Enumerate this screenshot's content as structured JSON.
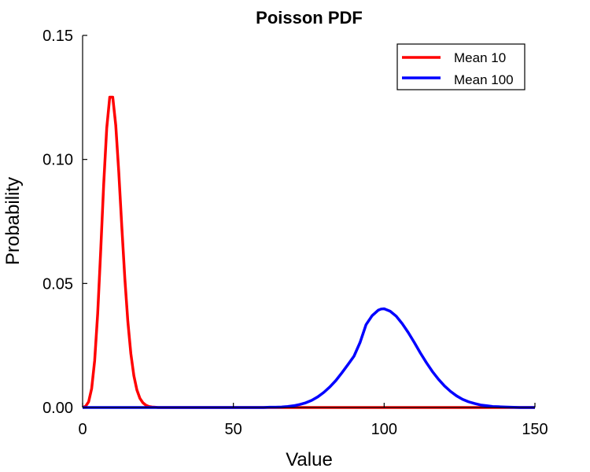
{
  "chart_data": {
    "type": "line",
    "title": "Poisson PDF",
    "xlabel": "Value",
    "ylabel": "Probability",
    "xlim": [
      0,
      150
    ],
    "ylim": [
      0,
      0.15
    ],
    "xticks": [
      0,
      50,
      100,
      150
    ],
    "xtick_labels": [
      "0",
      "50",
      "100",
      "150"
    ],
    "yticks": [
      0,
      0.05,
      0.1,
      0.15
    ],
    "ytick_labels": [
      "0.00",
      "0.05",
      "0.10",
      "0.15"
    ],
    "grid": false,
    "legend_position": "top-right",
    "series": [
      {
        "name": "Mean 10",
        "color": "#ff0000",
        "x": [
          0,
          1,
          2,
          3,
          4,
          5,
          6,
          7,
          8,
          9,
          10,
          11,
          12,
          13,
          14,
          15,
          16,
          17,
          18,
          19,
          20,
          21,
          22,
          23,
          24,
          25,
          26,
          27,
          28,
          29,
          30,
          35,
          40,
          45,
          50,
          60,
          70,
          80,
          90,
          100,
          110,
          120,
          130,
          140,
          150
        ],
        "y": [
          0.0,
          0.0005,
          0.0023,
          0.0076,
          0.0189,
          0.0378,
          0.0631,
          0.0901,
          0.1126,
          0.1251,
          0.1251,
          0.1137,
          0.0948,
          0.0729,
          0.0521,
          0.0347,
          0.0217,
          0.0128,
          0.0071,
          0.0037,
          0.0019,
          0.0009,
          0.0004,
          0.0002,
          0.0001,
          0.0,
          0.0,
          0.0,
          0.0,
          0.0,
          0.0,
          0.0,
          0.0,
          0.0,
          0.0,
          0.0,
          0.0,
          0.0,
          0.0,
          0.0,
          0.0,
          0.0,
          0.0,
          0.0,
          0.0
        ]
      },
      {
        "name": "Mean 100",
        "color": "#0000ff",
        "x": [
          0,
          10,
          20,
          30,
          40,
          50,
          55,
          60,
          62,
          64,
          66,
          68,
          70,
          72,
          74,
          76,
          78,
          80,
          82,
          84,
          86,
          88,
          90,
          92,
          94,
          96,
          98,
          99,
          100,
          102,
          104,
          106,
          108,
          110,
          112,
          114,
          116,
          118,
          120,
          122,
          124,
          126,
          128,
          130,
          132,
          134,
          136,
          138,
          140,
          145,
          150
        ],
        "y": [
          0.0,
          0.0,
          0.0,
          0.0,
          0.0,
          0.0,
          0.0,
          0.0,
          0.0001,
          0.0001,
          0.0002,
          0.0004,
          0.0007,
          0.0012,
          0.0019,
          0.0029,
          0.0043,
          0.0061,
          0.0083,
          0.0109,
          0.014,
          0.0173,
          0.0207,
          0.0262,
          0.0334,
          0.037,
          0.0392,
          0.0397,
          0.0398,
          0.0388,
          0.0368,
          0.0338,
          0.0302,
          0.0262,
          0.022,
          0.0181,
          0.0145,
          0.0114,
          0.0087,
          0.0065,
          0.0047,
          0.0033,
          0.0023,
          0.0016,
          0.001,
          0.0007,
          0.0004,
          0.0003,
          0.0002,
          0.0,
          0.0
        ]
      }
    ]
  }
}
